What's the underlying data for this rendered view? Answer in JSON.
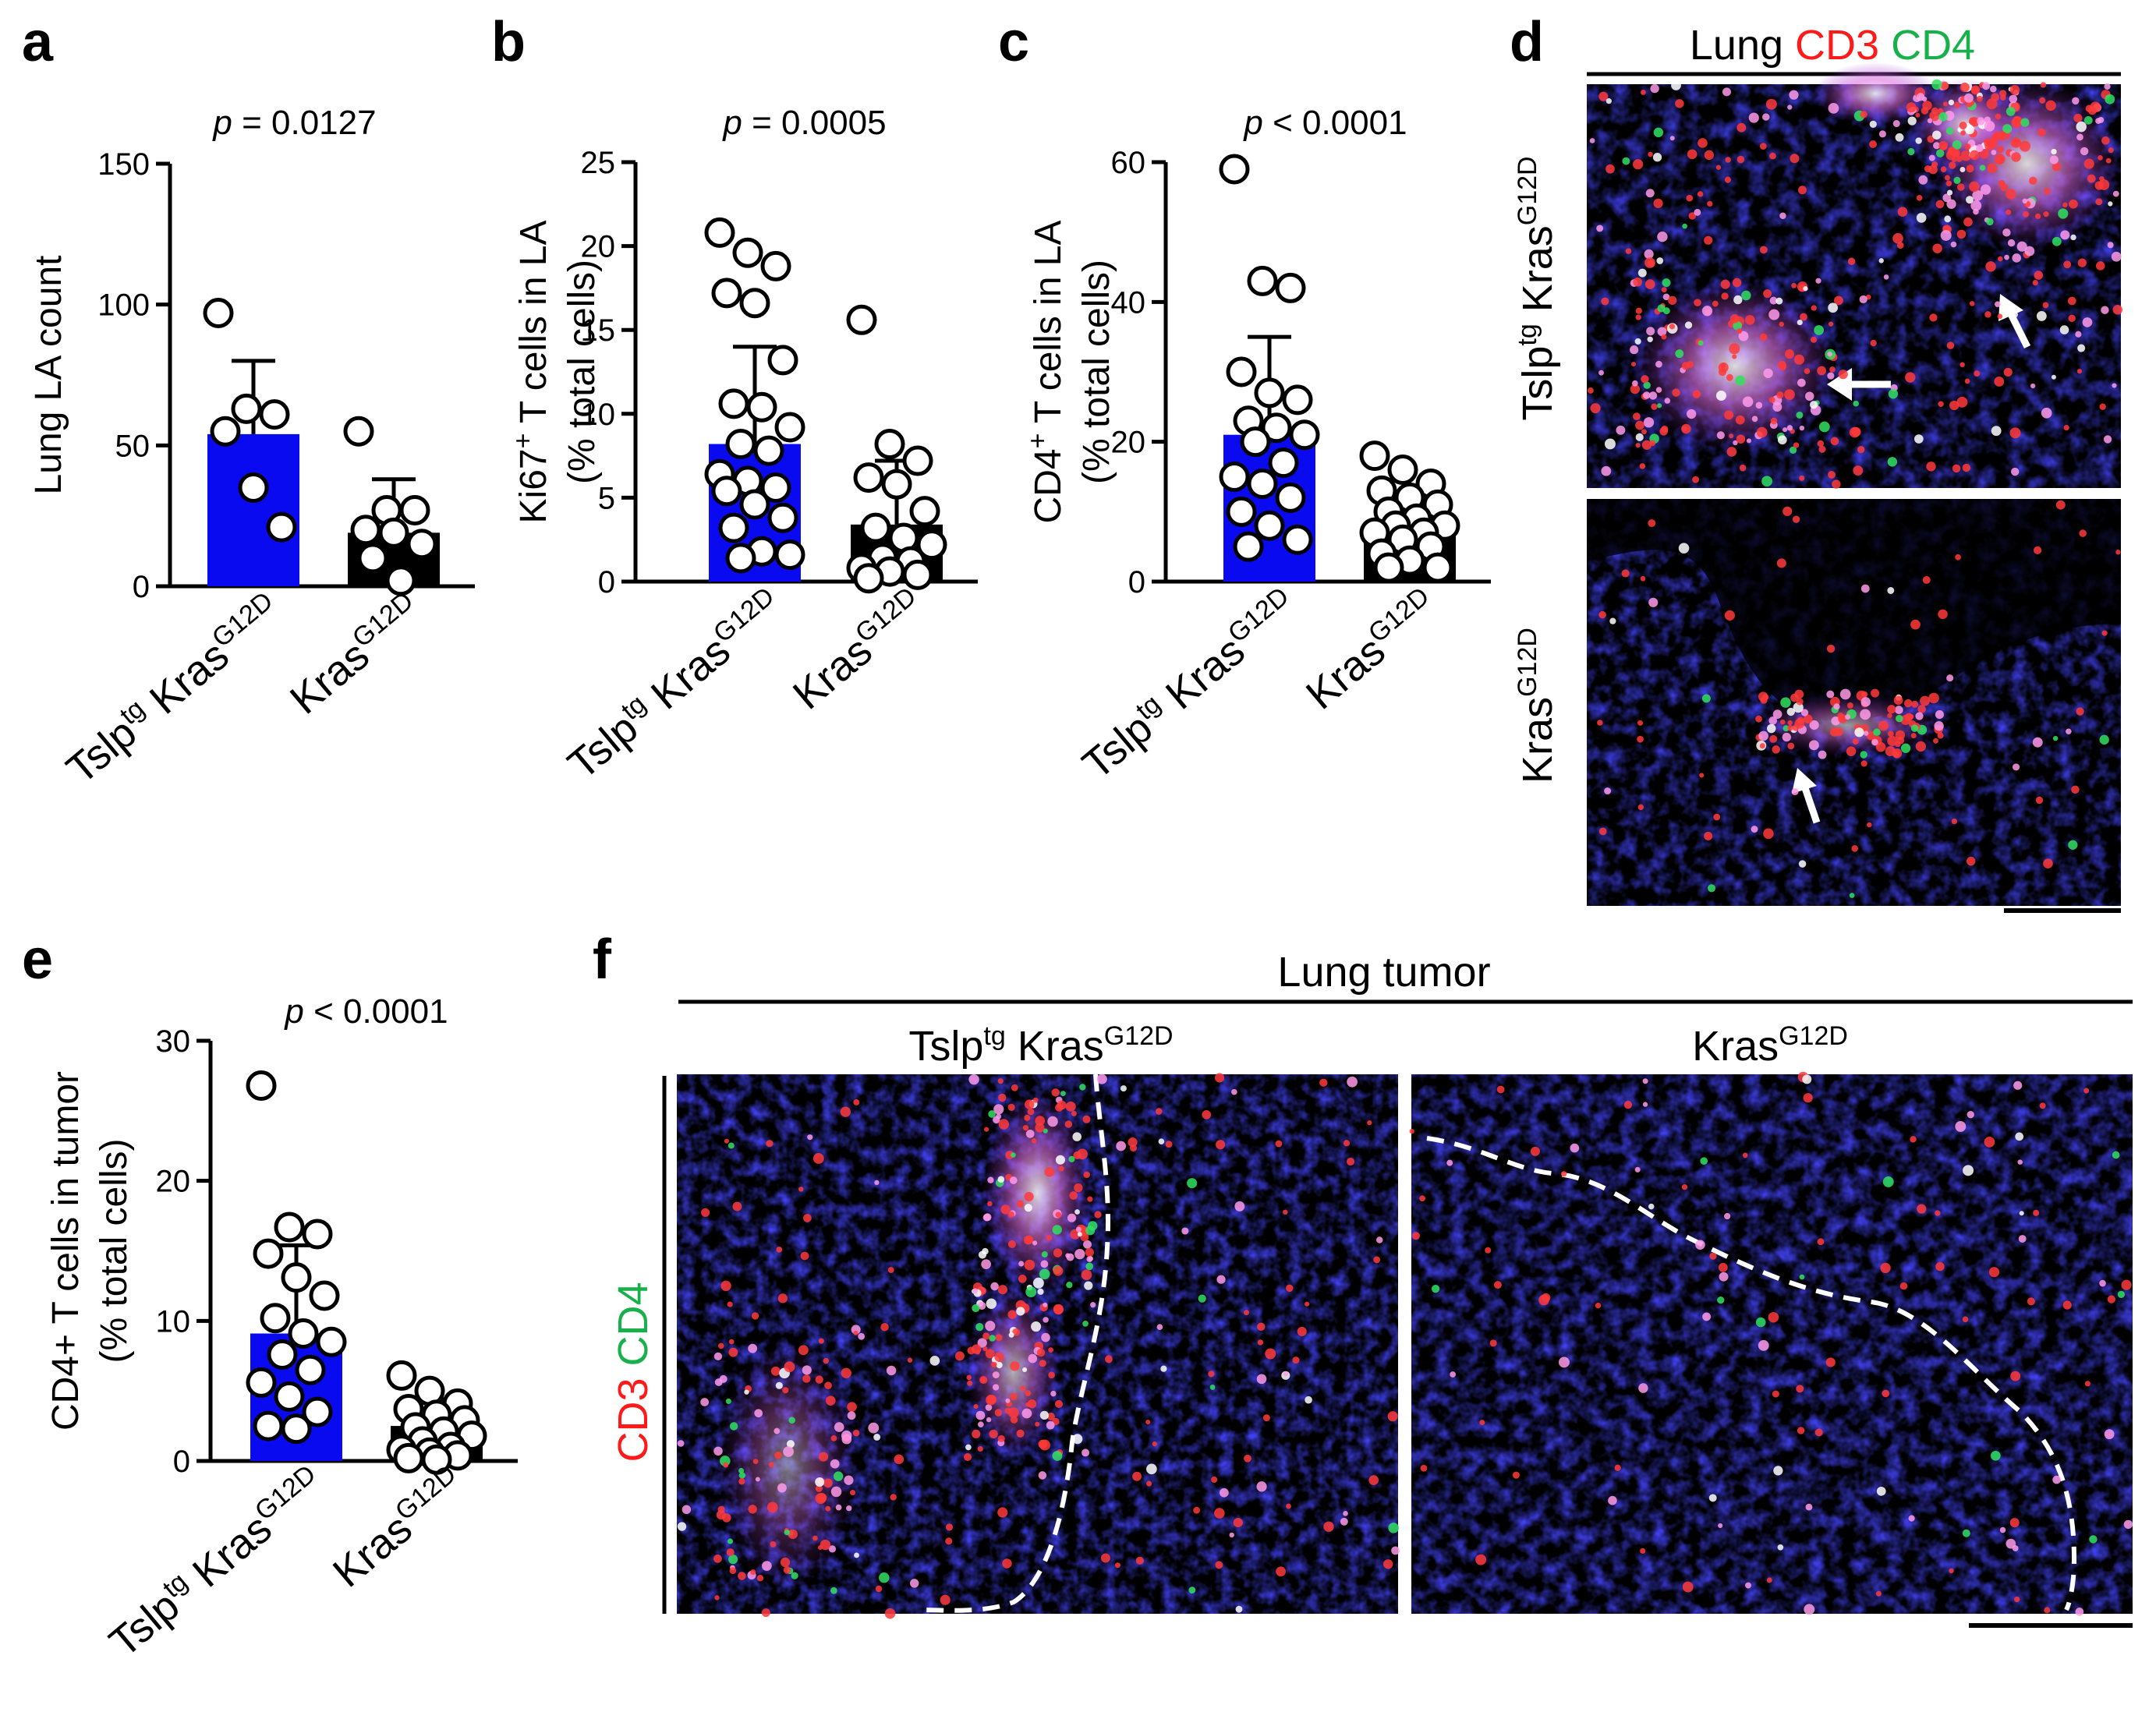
{
  "chart_data": [
    {
      "panel": "a",
      "type": "bar",
      "categories": [
        "Tslp^tg Kras^G12D",
        "Kras^G12D"
      ],
      "category_parts": [
        {
          "base": "Tslp",
          "sup1": "tg",
          "mid": " Kras",
          "sup2": "G12D"
        },
        {
          "base": "",
          "sup1": "",
          "mid": "Kras",
          "sup2": "G12D"
        }
      ],
      "ylabel": "Lung LA count",
      "ylabel_line2": "",
      "ylim": [
        0,
        150
      ],
      "yticks": [
        0,
        50,
        100,
        150
      ],
      "p_label": "p",
      "p_value": " = 0.0127",
      "bar_colors": [
        "#0a0af0",
        "#000000"
      ],
      "values": [
        54,
        19
      ],
      "sd": [
        26,
        19
      ],
      "points": [
        [
          97,
          63,
          61,
          55,
          35,
          21
        ],
        [
          55,
          27,
          27,
          20,
          19,
          15,
          10,
          2
        ]
      ]
    },
    {
      "panel": "b",
      "type": "bar",
      "categories": [
        "Tslp^tg Kras^G12D",
        "Kras^G12D"
      ],
      "category_parts": [
        {
          "base": "Tslp",
          "sup1": "tg",
          "mid": " Kras",
          "sup2": "G12D"
        },
        {
          "base": "",
          "sup1": "",
          "mid": "Kras",
          "sup2": "G12D"
        }
      ],
      "ylabel": "Ki67+ T cells in LA",
      "ylabel_line2": "(% total cells)",
      "ylim": [
        0,
        25
      ],
      "yticks": [
        0,
        5,
        10,
        15,
        20,
        25
      ],
      "p_label": "p",
      "p_value": " = 0.0005",
      "bar_colors": [
        "#0a0af0",
        "#000000"
      ],
      "values": [
        8.2,
        3.4
      ],
      "sd": [
        5.8,
        3.8
      ],
      "points": [
        [
          20.8,
          19.6,
          18.8,
          17.2,
          16.6,
          13.2,
          10.6,
          10.4,
          9.2,
          8.2,
          7.8,
          6.4,
          6.0,
          5.6,
          5.4,
          4.6,
          3.8,
          3.2,
          1.8,
          1.6,
          1.4
        ],
        [
          15.6,
          8.2,
          7.2,
          6.2,
          5.8,
          4.2,
          3.2,
          2.6,
          2.2,
          1.4,
          1.2,
          0.8,
          0.6,
          0.4,
          0.2
        ]
      ]
    },
    {
      "panel": "c",
      "type": "bar",
      "categories": [
        "Tslp^tg Kras^G12D",
        "Kras^G12D"
      ],
      "category_parts": [
        {
          "base": "Tslp",
          "sup1": "tg",
          "mid": " Kras",
          "sup2": "G12D"
        },
        {
          "base": "",
          "sup1": "",
          "mid": "Kras",
          "sup2": "G12D"
        }
      ],
      "ylabel": "CD4+ T cells in LA",
      "ylabel_line2": "(% total cells)",
      "ylim": [
        0,
        60
      ],
      "yticks": [
        0,
        20,
        40,
        60
      ],
      "p_label": "p",
      "p_value": " < 0.0001",
      "bar_colors": [
        "#0a0af0",
        "#000000"
      ],
      "values": [
        21,
        7.5
      ],
      "sd": [
        14,
        5
      ],
      "points": [
        [
          59,
          43,
          42,
          30,
          27,
          26,
          23,
          22,
          21,
          20,
          17,
          15,
          14,
          12,
          10,
          8,
          6,
          5
        ],
        [
          18,
          16,
          14,
          13,
          12,
          11,
          10,
          9,
          8,
          8,
          7,
          7,
          6,
          5,
          4,
          3,
          2,
          2
        ]
      ]
    },
    {
      "panel": "e",
      "type": "bar",
      "categories": [
        "Tslp^tg Kras^G12D",
        "Kras^G12D"
      ],
      "category_parts": [
        {
          "base": "Tslp",
          "sup1": "tg",
          "mid": " Kras",
          "sup2": "G12D"
        },
        {
          "base": "",
          "sup1": "",
          "mid": "Kras",
          "sup2": "G12D"
        }
      ],
      "ylabel": "CD4+ T cells in tumor",
      "ylabel_line2": "(% total cells)",
      "ylim": [
        0,
        30
      ],
      "yticks": [
        0,
        10,
        20,
        30
      ],
      "p_label": "p",
      "p_value": " < 0.0001",
      "bar_colors": [
        "#0a0af0",
        "#000000"
      ],
      "values": [
        9.1,
        2.5
      ],
      "sd": [
        6.3,
        1.9
      ],
      "points": [
        [
          26.8,
          16.7,
          16.2,
          14.8,
          13.1,
          11.8,
          10.2,
          9.1,
          8.5,
          7.6,
          6.5,
          5.6,
          4.6,
          3.5,
          2.5,
          2.3
        ],
        [
          6.1,
          5.0,
          4.1,
          3.7,
          3.3,
          2.9,
          2.4,
          2.1,
          1.8,
          1.4,
          1.0,
          0.8,
          0.6,
          0.4,
          0.2,
          0.1
        ]
      ]
    }
  ],
  "panel_d": {
    "letter": "d",
    "title_parts": [
      "Lung ",
      "CD3",
      " CD4"
    ],
    "row_labels": [
      {
        "base": "Tslp",
        "sup1": "tg",
        "mid": " Kras",
        "sup2": "G12D"
      },
      {
        "base": "",
        "sup1": "",
        "mid": "Kras",
        "sup2": "G12D"
      }
    ]
  },
  "panel_f": {
    "letter": "f",
    "title": "Lung tumor",
    "col_labels": [
      {
        "base": "Tslp",
        "sup1": "tg",
        "mid": " Kras",
        "sup2": "G12D"
      },
      {
        "base": "",
        "sup1": "",
        "mid": "Kras",
        "sup2": "G12D"
      }
    ],
    "channel_label_parts": [
      "CD3",
      " CD4"
    ]
  },
  "colors": {
    "bar_blue": "#0a0af0",
    "nuclei_blue": "#1616c8",
    "cd3_red": "#ff1a1a",
    "cd4_green": "#18b04a"
  }
}
